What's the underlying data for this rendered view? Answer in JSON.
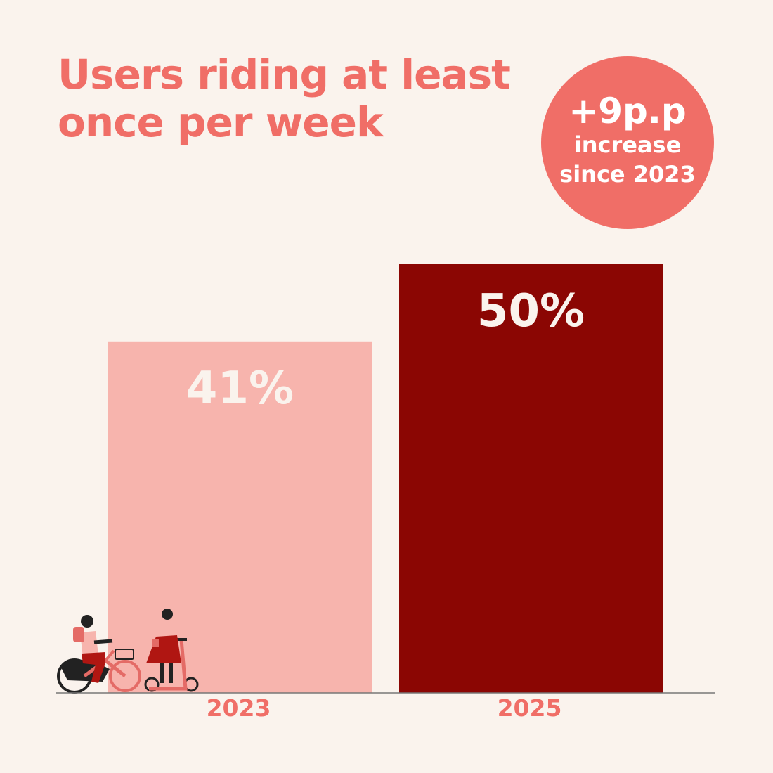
{
  "title_line1": "Users riding at least",
  "title_line2": "once per week",
  "badge": {
    "main": "+9p.p",
    "line1": "increase",
    "line2": "since 2023"
  },
  "colors": {
    "background": "#faf3ed",
    "accent": "#f06e67",
    "bar_2023": "#f7b4ad",
    "bar_2025": "#8b0603",
    "bar_label": "#faf3ed",
    "axis": "#777777"
  },
  "illustration": {
    "icons": [
      "bike-rider-icon",
      "scooter-rider-icon"
    ]
  },
  "chart_data": {
    "type": "bar",
    "categories": [
      "2023",
      "2025"
    ],
    "values": [
      41,
      50
    ],
    "value_labels": [
      "41%",
      "50%"
    ],
    "unit": "%",
    "ylim": [
      0,
      50
    ],
    "grid": false,
    "legend": "none"
  }
}
